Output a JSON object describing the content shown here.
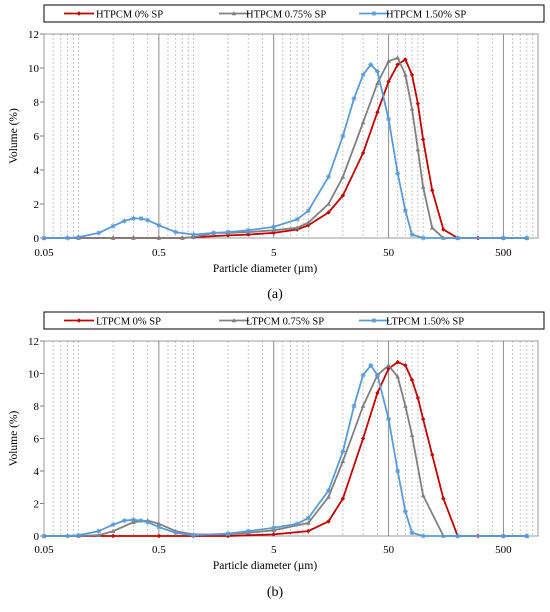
{
  "chart_data": [
    {
      "type": "line",
      "panel_label": "(a)",
      "xlabel": "Particle diameter (µm)",
      "ylabel": "Volume (%)",
      "x_scale": "log",
      "xlim": [
        0.05,
        1000
      ],
      "ylim": [
        0,
        12
      ],
      "x_ticks": [
        0.05,
        0.5,
        5,
        50,
        500
      ],
      "x_tick_labels": [
        "0.05",
        "0.5",
        "5",
        "50",
        "500"
      ],
      "y_ticks": [
        0,
        2,
        4,
        6,
        8,
        10,
        12
      ],
      "grid": "vertical-log",
      "legend_position": "top",
      "series": [
        {
          "name": "HTPCM 0% SP",
          "color": "#c00000",
          "marker": "diamond",
          "x": [
            0.05,
            0.1,
            0.2,
            0.3,
            0.5,
            0.8,
            1.0,
            2.0,
            3.0,
            5.0,
            8.0,
            10,
            15,
            20,
            30,
            40,
            50,
            60,
            70,
            80,
            90,
            100,
            120,
            150,
            200,
            300,
            500,
            800
          ],
          "y": [
            0,
            0,
            0,
            0,
            0,
            0,
            0.05,
            0.15,
            0.2,
            0.3,
            0.5,
            0.75,
            1.5,
            2.5,
            5.0,
            7.4,
            9.2,
            10.2,
            10.5,
            9.6,
            7.9,
            5.8,
            2.8,
            0.5,
            0,
            0,
            0,
            0
          ]
        },
        {
          "name": "HTPCM  0.75% SP",
          "color": "#808080",
          "marker": "triangle",
          "x": [
            0.05,
            0.1,
            0.2,
            0.3,
            0.5,
            0.8,
            1.0,
            1.5,
            2.0,
            3.0,
            5.0,
            8.0,
            10,
            15,
            20,
            30,
            40,
            50,
            60,
            70,
            80,
            90,
            100,
            120,
            150,
            200,
            500,
            800
          ],
          "y": [
            0,
            0,
            0,
            0,
            0,
            0,
            0.05,
            0.3,
            0.3,
            0.35,
            0.45,
            0.6,
            0.9,
            2.0,
            3.6,
            6.8,
            9.1,
            10.4,
            10.6,
            9.6,
            7.6,
            5.2,
            3.0,
            0.6,
            0,
            0,
            0,
            0
          ]
        },
        {
          "name": "HTPCM  1.50% SP",
          "color": "#5b9bd5",
          "marker": "star",
          "x": [
            0.05,
            0.08,
            0.1,
            0.15,
            0.2,
            0.25,
            0.3,
            0.35,
            0.4,
            0.5,
            0.7,
            1.0,
            1.5,
            2.0,
            3.0,
            5.0,
            8.0,
            10,
            15,
            20,
            25,
            30,
            35,
            40,
            50,
            60,
            70,
            80,
            100,
            200,
            500,
            800
          ],
          "y": [
            0,
            0,
            0.05,
            0.3,
            0.7,
            1.0,
            1.15,
            1.15,
            1.05,
            0.75,
            0.35,
            0.2,
            0.3,
            0.35,
            0.45,
            0.65,
            1.1,
            1.6,
            3.6,
            6.0,
            8.2,
            9.6,
            10.2,
            9.8,
            7.0,
            3.8,
            1.6,
            0.2,
            0,
            0,
            0,
            0
          ]
        }
      ]
    },
    {
      "type": "line",
      "panel_label": "(b)",
      "xlabel": "Particle diameter (µm)",
      "ylabel": "Volume (%)",
      "x_scale": "log",
      "xlim": [
        0.05,
        1000
      ],
      "ylim": [
        0,
        12
      ],
      "x_ticks": [
        0.05,
        0.5,
        5,
        50,
        500
      ],
      "x_tick_labels": [
        "0.05",
        "0.5",
        "5",
        "50",
        "500"
      ],
      "y_ticks": [
        0,
        2,
        4,
        6,
        8,
        10,
        12
      ],
      "grid": "vertical-log",
      "legend_position": "top",
      "series": [
        {
          "name": "LTPCM 0% SP",
          "color": "#c00000",
          "marker": "diamond",
          "x": [
            0.05,
            0.1,
            0.2,
            0.5,
            1.0,
            2.0,
            5.0,
            10,
            15,
            20,
            30,
            40,
            50,
            60,
            70,
            80,
            90,
            100,
            120,
            150,
            200,
            300,
            500,
            800
          ],
          "y": [
            0,
            0,
            0,
            0,
            0,
            0,
            0.1,
            0.3,
            0.9,
            2.3,
            6.0,
            8.8,
            10.3,
            10.7,
            10.5,
            9.6,
            8.5,
            7.2,
            5.0,
            2.3,
            0,
            0,
            0,
            0
          ]
        },
        {
          "name": "LTPCM  0.75% SP",
          "color": "#808080",
          "marker": "triangle",
          "x": [
            0.05,
            0.1,
            0.15,
            0.2,
            0.3,
            0.4,
            0.5,
            0.7,
            1.0,
            2.0,
            3.0,
            5.0,
            10,
            15,
            20,
            30,
            40,
            50,
            60,
            70,
            80,
            100,
            150,
            200,
            500,
            800
          ],
          "y": [
            0,
            0,
            0.05,
            0.3,
            0.85,
            0.95,
            0.75,
            0.3,
            0.1,
            0.1,
            0.2,
            0.35,
            0.8,
            2.4,
            4.6,
            8.0,
            9.9,
            10.5,
            9.8,
            8.0,
            6.2,
            2.5,
            0,
            0,
            0,
            0
          ]
        },
        {
          "name": "LTPCM  1.50% SP",
          "color": "#5b9bd5",
          "marker": "star",
          "x": [
            0.05,
            0.08,
            0.1,
            0.15,
            0.2,
            0.25,
            0.3,
            0.35,
            0.4,
            0.5,
            0.7,
            1.0,
            2.0,
            3.0,
            5.0,
            8.0,
            10,
            15,
            20,
            25,
            30,
            35,
            40,
            50,
            60,
            70,
            80,
            100,
            200,
            500,
            800
          ],
          "y": [
            0,
            0,
            0.05,
            0.3,
            0.7,
            0.95,
            1.0,
            0.95,
            0.85,
            0.55,
            0.2,
            0.05,
            0.15,
            0.3,
            0.5,
            0.75,
            1.1,
            2.8,
            5.2,
            8.0,
            9.9,
            10.5,
            9.9,
            7.2,
            4.0,
            1.5,
            0.2,
            0,
            0,
            0,
            0
          ]
        }
      ]
    }
  ]
}
